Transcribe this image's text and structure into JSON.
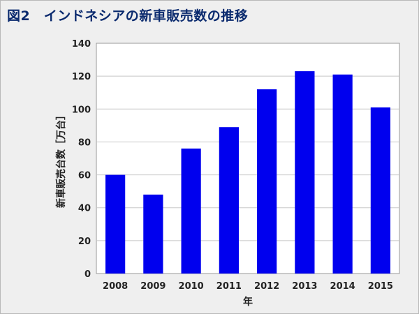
{
  "title": "図2　インドネシアの新車販売数の推移",
  "chart_data": {
    "type": "bar",
    "title": "図2　インドネシアの新車販売数の推移",
    "categories": [
      "2008",
      "2009",
      "2010",
      "2011",
      "2012",
      "2013",
      "2014",
      "2015"
    ],
    "values": [
      60,
      48,
      76,
      89,
      112,
      123,
      121,
      101
    ],
    "xlabel": "年",
    "ylabel": "新車販売台数［万台］",
    "ylim": [
      0,
      140
    ],
    "yticks": [
      0,
      20,
      40,
      60,
      80,
      100,
      120,
      140
    ],
    "grid": true,
    "legend": "none",
    "bar_color": "#0000ee"
  }
}
